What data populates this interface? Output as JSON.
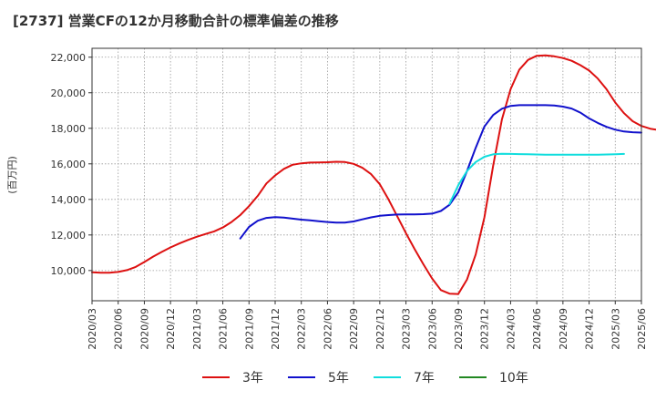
{
  "chart_data": {
    "type": "line",
    "title": "[2737]  営業CFの12か月移動合計の標準偏差の推移",
    "ylabel": "(百万円)",
    "xlabel": "",
    "ylim": [
      8300,
      22500
    ],
    "yticks": [
      10000,
      12000,
      14000,
      16000,
      18000,
      20000,
      22000
    ],
    "ytick_labels": [
      "10,000",
      "12,000",
      "14,000",
      "16,000",
      "18,000",
      "20,000",
      "22,000"
    ],
    "xlim": [
      "2020-03",
      "2025-06"
    ],
    "xtick_labels": [
      "2020/03",
      "2020/06",
      "2020/09",
      "2020/12",
      "2021/03",
      "2021/06",
      "2021/09",
      "2021/12",
      "2022/03",
      "2022/06",
      "2022/09",
      "2022/12",
      "2023/03",
      "2023/06",
      "2023/09",
      "2023/12",
      "2024/03",
      "2024/06",
      "2024/09",
      "2024/12",
      "2025/03",
      "2025/06"
    ],
    "grid": true,
    "legend_position": "bottom",
    "series": [
      {
        "name": "3年",
        "color": "#dd1111",
        "start": "2020-03",
        "values": [
          9900,
          9880,
          9880,
          9920,
          10020,
          10200,
          10480,
          10780,
          11050,
          11300,
          11520,
          11720,
          11900,
          12050,
          12200,
          12420,
          12730,
          13120,
          13620,
          14200,
          14900,
          15350,
          15720,
          15950,
          16030,
          16070,
          16080,
          16090,
          16120,
          16100,
          16000,
          15780,
          15420,
          14850,
          14000,
          13050,
          12100,
          11200,
          10350,
          9550,
          8900,
          8700,
          8680,
          9500,
          10900,
          13000,
          15900,
          18500,
          20200,
          21300,
          21850,
          22080,
          22100,
          22050,
          21950,
          21800,
          21550,
          21250,
          20800,
          20200,
          19450,
          18850,
          18400,
          18130,
          17980,
          17900,
          17880,
          17880
        ]
      },
      {
        "name": "5年",
        "color": "#1111cc",
        "start": "2021-08",
        "values": [
          11800,
          12450,
          12800,
          12960,
          13000,
          12980,
          12920,
          12860,
          12820,
          12770,
          12730,
          12700,
          12700,
          12760,
          12880,
          12990,
          13080,
          13120,
          13150,
          13160,
          13160,
          13170,
          13200,
          13350,
          13700,
          14400,
          15600,
          16900,
          18100,
          18750,
          19100,
          19260,
          19300,
          19300,
          19300,
          19300,
          19280,
          19220,
          19110,
          18880,
          18560,
          18300,
          18080,
          17920,
          17820,
          17780,
          17760
        ]
      },
      {
        "name": "7年",
        "color": "#11dddd",
        "start": "2023-08",
        "values": [
          13750,
          14800,
          15600,
          16100,
          16400,
          16540,
          16570,
          16560,
          16550,
          16540,
          16530,
          16520,
          16510,
          16510,
          16510,
          16510,
          16510,
          16520,
          16530,
          16540,
          16560
        ]
      },
      {
        "name": "10年",
        "color": "#228822",
        "start": "2025-03",
        "values": []
      }
    ]
  }
}
